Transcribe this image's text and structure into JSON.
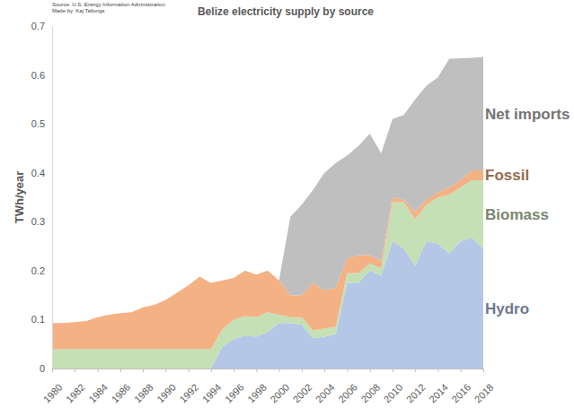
{
  "chart_data": {
    "type": "area",
    "stacked": true,
    "title": "Belize electricity supply by source",
    "annotations": [
      "Source: U.S. Energy Information Administration",
      "Made by: Kaj Tallungs"
    ],
    "y_label": "TWh/year",
    "x": [
      1980,
      1981,
      1982,
      1983,
      1984,
      1985,
      1986,
      1987,
      1988,
      1989,
      1990,
      1991,
      1992,
      1993,
      1994,
      1995,
      1996,
      1997,
      1998,
      1999,
      2000,
      2001,
      2002,
      2003,
      2004,
      2005,
      2006,
      2007,
      2008,
      2009,
      2010,
      2011,
      2012,
      2013,
      2014,
      2015,
      2016,
      2017,
      2018
    ],
    "xlim": [
      1980,
      2018
    ],
    "xticks": [
      1980,
      1982,
      1984,
      1986,
      1988,
      1990,
      1992,
      1994,
      1996,
      1998,
      2000,
      2002,
      2004,
      2006,
      2008,
      2010,
      2012,
      2014,
      2016,
      2018
    ],
    "ylim": [
      0,
      0.7
    ],
    "yticks": [
      0,
      0.1,
      0.2,
      0.3,
      0.4,
      0.5,
      0.6,
      0.7
    ],
    "grid": false,
    "series": [
      {
        "name": "Hydro",
        "color": "#b4c7e7",
        "values": [
          0,
          0,
          0,
          0,
          0,
          0,
          0,
          0,
          0,
          0,
          0,
          0,
          0,
          0,
          0,
          0.045,
          0.06,
          0.068,
          0.065,
          0.075,
          0.093,
          0.093,
          0.09,
          0.062,
          0.065,
          0.07,
          0.175,
          0.175,
          0.2,
          0.19,
          0.26,
          0.245,
          0.21,
          0.26,
          0.255,
          0.235,
          0.26,
          0.268,
          0.245
        ]
      },
      {
        "name": "Biomass",
        "color": "#c5e0b4",
        "values": [
          0.04,
          0.04,
          0.04,
          0.04,
          0.04,
          0.04,
          0.04,
          0.04,
          0.04,
          0.04,
          0.04,
          0.04,
          0.04,
          0.04,
          0.04,
          0.035,
          0.04,
          0.039,
          0.04,
          0.04,
          0.017,
          0.012,
          0.015,
          0.016,
          0.017,
          0.015,
          0.02,
          0.02,
          0.015,
          0.015,
          0.08,
          0.095,
          0.095,
          0.075,
          0.095,
          0.12,
          0.11,
          0.117,
          0.14
        ]
      },
      {
        "name": "Fossil",
        "color": "#f4b183",
        "values": [
          0.053,
          0.053,
          0.055,
          0.057,
          0.065,
          0.07,
          0.073,
          0.075,
          0.085,
          0.09,
          0.1,
          0.115,
          0.13,
          0.148,
          0.135,
          0.1,
          0.085,
          0.093,
          0.087,
          0.085,
          0.07,
          0.045,
          0.045,
          0.097,
          0.078,
          0.08,
          0.03,
          0.037,
          0.017,
          0.015,
          0.01,
          0.005,
          0.015,
          0.01,
          0.01,
          0.015,
          0.015,
          0.02,
          0.02
        ]
      },
      {
        "name": "Net imports",
        "color": "#bfbfbf",
        "values": [
          0,
          0,
          0,
          0,
          0,
          0,
          0,
          0,
          0,
          0,
          0,
          0,
          0,
          0,
          0,
          0,
          0,
          0,
          0,
          0,
          0,
          0.16,
          0.185,
          0.19,
          0.24,
          0.255,
          0.21,
          0.223,
          0.248,
          0.22,
          0.16,
          0.173,
          0.23,
          0.233,
          0.235,
          0.263,
          0.249,
          0.23,
          0.232
        ]
      }
    ]
  }
}
